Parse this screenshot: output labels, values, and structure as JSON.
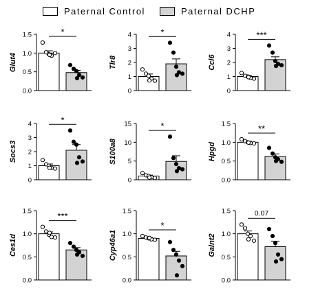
{
  "legend": {
    "control": {
      "label": "Paternal Control",
      "color": "#ffffff"
    },
    "dchp": {
      "label": "Paternal DCHP",
      "color": "#d3d3d3"
    }
  },
  "chart_data": [
    {
      "type": "bar",
      "ylabel": "Glut4",
      "ylim": [
        0,
        1.5
      ],
      "yticks": [
        0,
        0.5,
        1.0,
        1.5
      ],
      "tick_labels": [
        "0.0",
        "0.5",
        "1.0",
        "1.5"
      ],
      "sig": "*",
      "categories": [
        "Paternal Control",
        "Paternal DCHP"
      ],
      "series": [
        {
          "name": "Paternal Control",
          "value": 1.0,
          "sem": 0.06,
          "points": [
            1.28,
            1.02,
            0.97,
            0.93,
            1.0,
            0.95
          ]
        },
        {
          "name": "Paternal DCHP",
          "value": 0.48,
          "sem": 0.06,
          "points": [
            0.68,
            0.58,
            0.52,
            0.42,
            0.35,
            0.33
          ]
        }
      ]
    },
    {
      "type": "bar",
      "ylabel": "Tlr8",
      "ylim": [
        0,
        4
      ],
      "yticks": [
        0,
        1,
        2,
        3,
        4
      ],
      "tick_labels": [
        "0",
        "1",
        "2",
        "3",
        "4"
      ],
      "sig": "*",
      "categories": [
        "Paternal Control",
        "Paternal DCHP"
      ],
      "series": [
        {
          "name": "Paternal Control",
          "value": 1.0,
          "sem": 0.18,
          "points": [
            1.5,
            1.2,
            1.05,
            0.85,
            0.7,
            0.72
          ]
        },
        {
          "name": "Paternal DCHP",
          "value": 1.9,
          "sem": 0.35,
          "points": [
            3.4,
            2.7,
            1.7,
            1.3,
            1.2,
            1.1
          ]
        }
      ]
    },
    {
      "type": "bar",
      "ylabel": "Ccl6",
      "ylim": [
        0,
        4
      ],
      "yticks": [
        0,
        1,
        2,
        3,
        4
      ],
      "tick_labels": [
        "0",
        "1",
        "2",
        "3",
        "4"
      ],
      "sig": "***",
      "categories": [
        "Paternal Control",
        "Paternal DCHP"
      ],
      "series": [
        {
          "name": "Paternal Control",
          "value": 1.0,
          "sem": 0.08,
          "points": [
            1.25,
            1.05,
            1.0,
            0.9,
            0.85,
            0.95
          ]
        },
        {
          "name": "Paternal DCHP",
          "value": 2.2,
          "sem": 0.2,
          "points": [
            3.2,
            2.7,
            2.1,
            1.9,
            1.8,
            1.75
          ]
        }
      ]
    },
    {
      "type": "bar",
      "ylabel": "Socs3",
      "ylim": [
        0,
        4
      ],
      "yticks": [
        0,
        1,
        2,
        3,
        4
      ],
      "tick_labels": [
        "0",
        "1",
        "2",
        "3",
        "4"
      ],
      "sig": "*",
      "categories": [
        "Paternal Control",
        "Paternal DCHP"
      ],
      "series": [
        {
          "name": "Paternal Control",
          "value": 1.0,
          "sem": 0.12,
          "points": [
            1.4,
            1.1,
            1.0,
            0.85,
            0.8,
            0.85
          ]
        },
        {
          "name": "Paternal DCHP",
          "value": 2.1,
          "sem": 0.4,
          "points": [
            3.5,
            2.7,
            2.5,
            1.6,
            1.3,
            1.2
          ]
        }
      ]
    },
    {
      "type": "bar",
      "ylabel": "S100a8",
      "ylim": [
        0,
        15
      ],
      "yticks": [
        0,
        5,
        10,
        15
      ],
      "tick_labels": [
        "0",
        "5",
        "10",
        "15"
      ],
      "sig": "*",
      "categories": [
        "Paternal Control",
        "Paternal DCHP"
      ],
      "series": [
        {
          "name": "Paternal Control",
          "value": 1.0,
          "sem": 0.25,
          "points": [
            1.8,
            1.2,
            1.0,
            0.7,
            0.5,
            0.6
          ]
        },
        {
          "name": "Paternal DCHP",
          "value": 4.9,
          "sem": 1.5,
          "points": [
            11.5,
            5.8,
            4.2,
            3.1,
            2.8,
            2.3
          ]
        }
      ]
    },
    {
      "type": "bar",
      "ylabel": "Hpgd",
      "ylim": [
        0,
        1.5
      ],
      "yticks": [
        0,
        0.5,
        1.0,
        1.5
      ],
      "tick_labels": [
        "0.0",
        "0.5",
        "1.0",
        "1.5"
      ],
      "sig": "**",
      "categories": [
        "Paternal Control",
        "Paternal DCHP"
      ],
      "series": [
        {
          "name": "Paternal Control",
          "value": 1.0,
          "sem": 0.03,
          "points": [
            1.08,
            1.03,
            1.0,
            0.98,
            0.97,
            0.99
          ]
        },
        {
          "name": "Paternal DCHP",
          "value": 0.62,
          "sem": 0.07,
          "points": [
            0.85,
            0.7,
            0.6,
            0.55,
            0.48,
            0.5
          ]
        }
      ]
    },
    {
      "type": "bar",
      "ylabel": "Ces1d",
      "ylim": [
        0,
        1.5
      ],
      "yticks": [
        0,
        0.5,
        1.0,
        1.5
      ],
      "tick_labels": [
        "0.0",
        "0.5",
        "1.0",
        "1.5"
      ],
      "sig": "***",
      "categories": [
        "Paternal Control",
        "Paternal DCHP"
      ],
      "series": [
        {
          "name": "Paternal Control",
          "value": 1.0,
          "sem": 0.04,
          "points": [
            1.15,
            1.05,
            0.98,
            0.93,
            0.92,
            1.02
          ]
        },
        {
          "name": "Paternal DCHP",
          "value": 0.65,
          "sem": 0.05,
          "points": [
            0.8,
            0.72,
            0.65,
            0.6,
            0.52,
            0.55
          ]
        }
      ]
    },
    {
      "type": "bar",
      "ylabel": "Cyp46a1",
      "ylim": [
        0,
        1.5
      ],
      "yticks": [
        0,
        0.5,
        1.0,
        1.5
      ],
      "tick_labels": [
        "0.0",
        "0.5",
        "1.0",
        "1.5"
      ],
      "sig": "*",
      "categories": [
        "Paternal Control",
        "Paternal DCHP"
      ],
      "series": [
        {
          "name": "Paternal Control",
          "value": 0.9,
          "sem": 0.02,
          "points": [
            0.95,
            0.92,
            0.9,
            0.88,
            0.87,
            0.91
          ]
        },
        {
          "name": "Paternal DCHP",
          "value": 0.52,
          "sem": 0.1,
          "points": [
            0.82,
            0.65,
            0.55,
            0.42,
            0.3,
            0.1
          ]
        }
      ]
    },
    {
      "type": "bar",
      "ylabel": "Galnt2",
      "ylim": [
        0,
        1.5
      ],
      "yticks": [
        0,
        0.5,
        1.0,
        1.5
      ],
      "tick_labels": [
        "0.0",
        "0.5",
        "1.0",
        "1.5"
      ],
      "sig": "0.07",
      "categories": [
        "Paternal Control",
        "Paternal DCHP"
      ],
      "series": [
        {
          "name": "Paternal Control",
          "value": 1.0,
          "sem": 0.06,
          "points": [
            1.2,
            1.12,
            1.0,
            0.95,
            0.85,
            0.88
          ]
        },
        {
          "name": "Paternal DCHP",
          "value": 0.72,
          "sem": 0.12,
          "points": [
            1.1,
            0.95,
            0.8,
            0.55,
            0.45,
            0.4
          ]
        }
      ]
    }
  ]
}
